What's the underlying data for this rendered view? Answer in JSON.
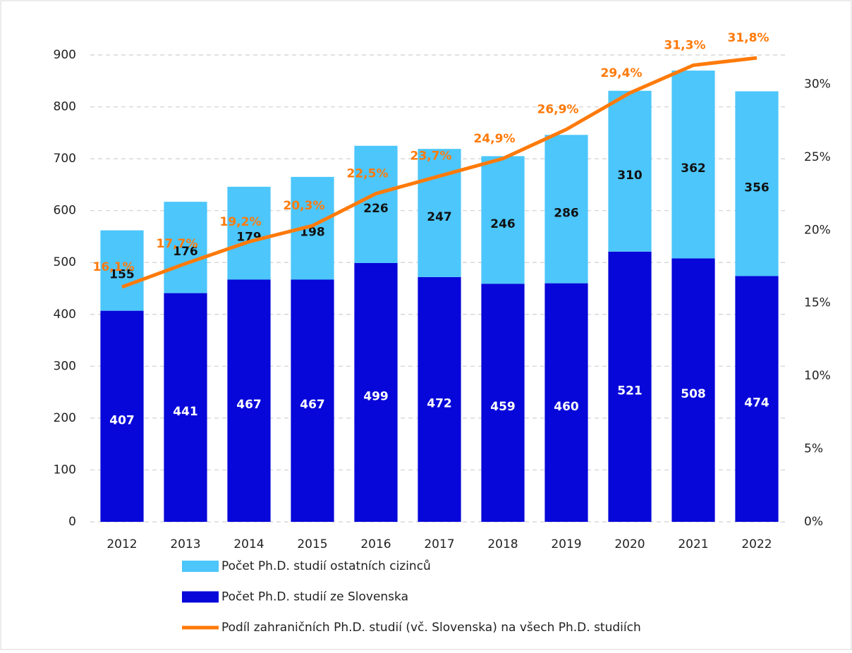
{
  "chart_data": {
    "type": "bar",
    "categories": [
      "2012",
      "2013",
      "2014",
      "2015",
      "2016",
      "2017",
      "2018",
      "2019",
      "2020",
      "2021",
      "2022"
    ],
    "stacked": true,
    "series": [
      {
        "name": "Počet Ph.D. studií ze Slovenska",
        "color": "#0707d9",
        "values": [
          407,
          441,
          467,
          467,
          499,
          472,
          459,
          460,
          521,
          508,
          474
        ]
      },
      {
        "name": "Počet Ph.D. studií ostatních cizinců",
        "color": "#4cc6fb",
        "values": [
          155,
          176,
          179,
          198,
          226,
          247,
          246,
          286,
          310,
          362,
          356
        ]
      },
      {
        "name": "Podíl zahraničních Ph.D. studií (vč. Slovenska) na všech Ph.D. studiích",
        "type": "line",
        "axis": "y2",
        "color": "#ff7a0a",
        "values": [
          16.1,
          17.7,
          19.2,
          20.3,
          22.5,
          23.7,
          24.9,
          26.9,
          29.4,
          31.3,
          31.8
        ],
        "value_labels": [
          "16,1%",
          "17,7%",
          "19,2%",
          "20,3%",
          "22,5%",
          "23,7%",
          "24,9%",
          "26,9%",
          "29,4%",
          "31,3%",
          "31,8%"
        ]
      }
    ],
    "ylim": [
      0,
      900
    ],
    "yticks": [
      0,
      100,
      200,
      300,
      400,
      500,
      600,
      700,
      800,
      900
    ],
    "y2lim": [
      0,
      32
    ],
    "y2ticks": [
      {
        "value": 0,
        "label": "0%"
      },
      {
        "value": 5,
        "label": "5%"
      },
      {
        "value": 10,
        "label": "10%"
      },
      {
        "value": 15,
        "label": "15%"
      },
      {
        "value": 20,
        "label": "20%"
      },
      {
        "value": 25,
        "label": "25%"
      },
      {
        "value": 30,
        "label": "30%"
      }
    ],
    "grid": true,
    "legend": "bottom"
  }
}
